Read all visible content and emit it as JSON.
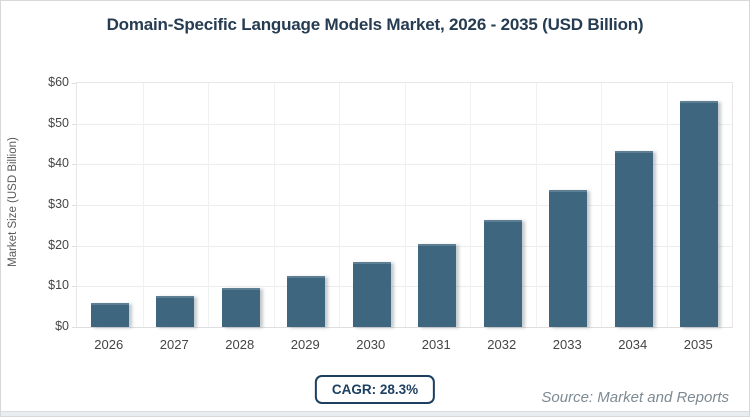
{
  "chart_data": {
    "type": "bar",
    "title": "Domain-Specific Language Models Market, 2026 - 2035 (USD Billion)",
    "categories": [
      "2026",
      "2027",
      "2028",
      "2029",
      "2030",
      "2031",
      "2032",
      "2033",
      "2034",
      "2035"
    ],
    "values": [
      5.9,
      7.6,
      9.7,
      12.5,
      16.0,
      20.5,
      26.3,
      33.7,
      43.3,
      55.5
    ],
    "xlabel": "",
    "ylabel": "Market Size (USD Billion)",
    "ylim": [
      0,
      60
    ],
    "ytick_step": 10,
    "ytick_prefix": "$",
    "grid": true,
    "legend": "none",
    "bar_color": "#3f667f"
  },
  "badge": {
    "label": "CAGR: 28.3%",
    "border_color": "#1d4060",
    "text_color": "#1d4060"
  },
  "source": {
    "text": "Source: Market and Reports",
    "color": "#7e8a92"
  },
  "colors": {
    "title_text": "#263c52",
    "axis_text": "#454545",
    "grid_line": "#ededed",
    "bottom_band": "#e9edf0"
  }
}
